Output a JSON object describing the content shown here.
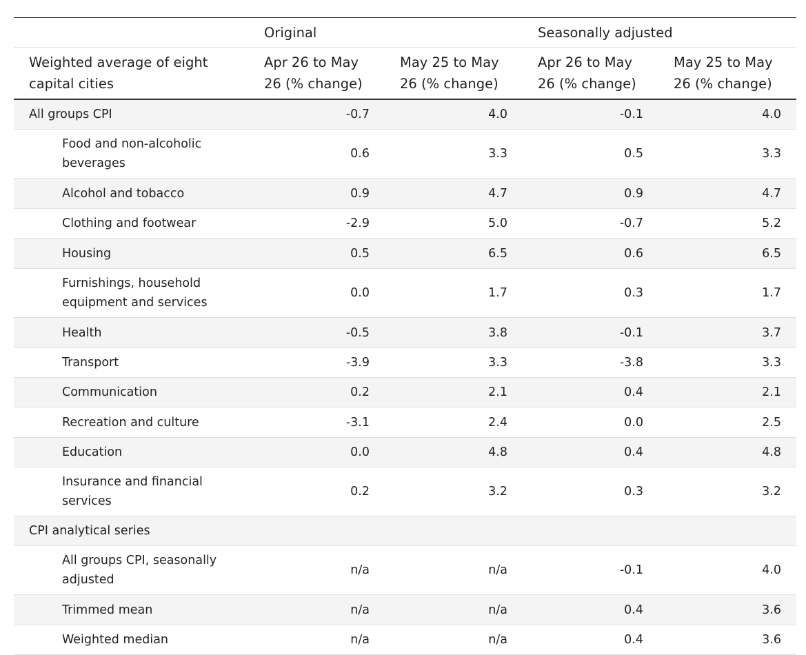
{
  "table": {
    "group_headers": {
      "blank": "",
      "original": "Original",
      "seasonally_adjusted": "Seasonally adjusted"
    },
    "columns": [
      "Weighted average of eight capital cities",
      "Apr 26 to May 26 (% change)",
      "May 25 to May 26 (% change)",
      "Apr 26 to May 26 (% change)",
      "May 25 to May 26 (% change)"
    ],
    "rows": [
      {
        "label": "All groups CPI",
        "values": [
          "-0.7",
          "4.0",
          "-0.1",
          "4.0"
        ]
      },
      {
        "label": "Food and non-alcoholic beverages",
        "values": [
          "0.6",
          "3.3",
          "0.5",
          "3.3"
        ]
      },
      {
        "label": "Alcohol and tobacco",
        "values": [
          "0.9",
          "4.7",
          "0.9",
          "4.7"
        ]
      },
      {
        "label": "Clothing and footwear",
        "values": [
          "-2.9",
          "5.0",
          "-0.7",
          "5.2"
        ]
      },
      {
        "label": "Housing",
        "values": [
          "0.5",
          "6.5",
          "0.6",
          "6.5"
        ]
      },
      {
        "label": "Furnishings, household equipment and services",
        "values": [
          "0.0",
          "1.7",
          "0.3",
          "1.7"
        ]
      },
      {
        "label": "Health",
        "values": [
          "-0.5",
          "3.8",
          "-0.1",
          "3.7"
        ]
      },
      {
        "label": "Transport",
        "values": [
          "-3.9",
          "3.3",
          "-3.8",
          "3.3"
        ]
      },
      {
        "label": "Communication",
        "values": [
          "0.2",
          "2.1",
          "0.4",
          "2.1"
        ]
      },
      {
        "label": "Recreation and culture",
        "values": [
          "-3.1",
          "2.4",
          "0.0",
          "2.5"
        ]
      },
      {
        "label": "Education",
        "values": [
          "0.0",
          "4.8",
          "0.4",
          "4.8"
        ]
      },
      {
        "label": "Insurance and financial services",
        "values": [
          "0.2",
          "3.2",
          "0.3",
          "3.2"
        ]
      },
      {
        "label": "CPI analytical series",
        "values": [
          "",
          "",
          "",
          ""
        ]
      },
      {
        "label": "All groups CPI, seasonally adjusted",
        "values": [
          "n/a",
          "n/a",
          "-0.1",
          "4.0"
        ]
      },
      {
        "label": "Trimmed mean",
        "values": [
          "n/a",
          "n/a",
          "0.4",
          "3.6"
        ]
      },
      {
        "label": "Weighted median",
        "values": [
          "n/a",
          "n/a",
          "0.4",
          "3.6"
        ]
      }
    ]
  }
}
